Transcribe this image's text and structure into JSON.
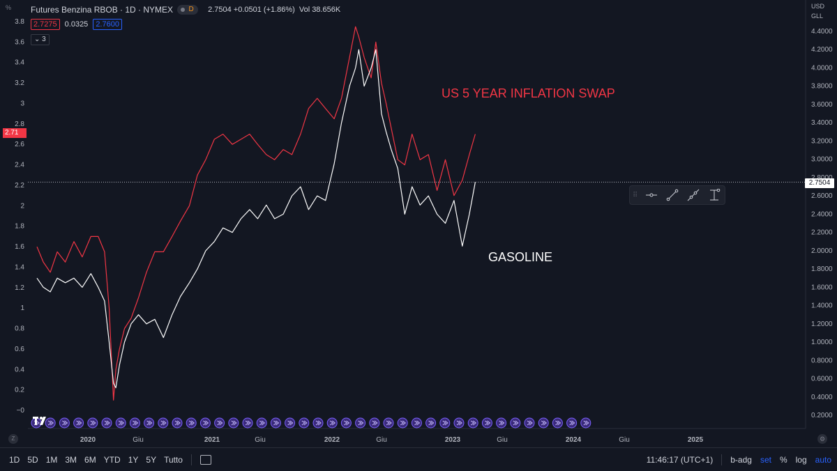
{
  "header": {
    "title": "Futures Benzina RBOB · 1D · NYMEX",
    "badge": "D",
    "quote": "2.7504 +0.0501 (+1.86%)",
    "volume": "Vol 38.656K"
  },
  "indicator": {
    "value1": "2.7275",
    "value2": "0.0325",
    "value3": "2.7600",
    "collapse_label": "3"
  },
  "left_axis_unit": "%",
  "right_axis_currency": "USD",
  "right_axis_unit": "GLL",
  "current_price_label": "2.7504",
  "left_current_label": "2.71",
  "annotations": {
    "inflation": "US 5 YEAR INFLATION SWAP",
    "gasoline": "GASOLINE"
  },
  "bottom_bar": {
    "ranges": [
      "1D",
      "5D",
      "1M",
      "3M",
      "6M",
      "YTD",
      "1Y",
      "5Y",
      "Tutto"
    ],
    "time": "11:46:17 (UTC+1)",
    "adjust": "b-adg",
    "set": "set",
    "pct": "%",
    "log": "log",
    "auto": "auto"
  },
  "z_label": "Z",
  "colors": {
    "background": "#131722",
    "inflation_line": "#f23645",
    "gasoline_line": "#ffffff",
    "text": "#b2b5be",
    "accent": "#2962ff"
  },
  "chart_data": {
    "type": "line",
    "x_axis": {
      "ticks": [
        "2020",
        "Giu",
        "2021",
        "Giu",
        "2022",
        "Giu",
        "2023",
        "Giu",
        "2024",
        "Giu",
        "2025"
      ]
    },
    "left_axis": {
      "ticks": [
        "−0",
        "0.2",
        "0.4",
        "0.6",
        "0.8",
        "1",
        "1.2",
        "1.4",
        "1.6",
        "1.8",
        "2",
        "2.2",
        "2.4",
        "2.6",
        "2.8",
        "3",
        "3.2",
        "3.4",
        "3.6",
        "3.8"
      ],
      "ylim": [
        0,
        3.8
      ]
    },
    "right_axis": {
      "ticks": [
        "0.2000",
        "0.4000",
        "0.6000",
        "0.8000",
        "1.0000",
        "1.2000",
        "1.4000",
        "1.6000",
        "1.8000",
        "2.0000",
        "2.2000",
        "2.4000",
        "2.6000",
        "2.8000",
        "3.0000",
        "3.2000",
        "3.4000",
        "3.6000",
        "3.8000",
        "4.0000",
        "4.2000",
        "4.4000"
      ],
      "ylim": [
        0.2,
        4.4
      ]
    },
    "series": [
      {
        "axis": "left",
        "x": [
          "2019-08-01",
          "2019-08-20",
          "2019-09-10",
          "2019-10-01",
          "2019-10-25",
          "2019-11-20",
          "2019-12-15",
          "2020-01-10",
          "2020-02-01",
          "2020-02-20",
          "2020-03-05",
          "2020-03-18",
          "2020-03-25",
          "2020-04-05",
          "2020-04-20",
          "2020-05-10",
          "2020-06-01",
          "2020-06-25",
          "2020-07-20",
          "2020-08-15",
          "2020-09-10",
          "2020-10-05",
          "2020-11-01",
          "2020-11-25",
          "2020-12-20",
          "2021-01-15",
          "2021-02-10",
          "2021-03-10",
          "2021-04-05",
          "2021-05-01",
          "2021-05-25",
          "2021-06-20",
          "2021-07-15",
          "2021-08-10",
          "2021-09-05",
          "2021-10-01",
          "2021-10-25",
          "2021-11-20",
          "2021-12-15",
          "2022-01-10",
          "2022-02-01",
          "2022-02-25",
          "2022-03-15",
          "2022-03-25",
          "2022-04-10",
          "2022-05-01",
          "2022-05-15",
          "2022-06-01",
          "2022-06-15",
          "2022-07-01",
          "2022-07-20",
          "2022-08-10",
          "2022-09-01",
          "2022-09-25",
          "2022-10-20",
          "2022-11-15",
          "2022-12-10",
          "2023-01-05",
          "2023-01-30",
          "2023-02-20",
          "2023-03-10"
        ],
        "values": [
          1.6,
          1.45,
          1.35,
          1.55,
          1.45,
          1.65,
          1.5,
          1.7,
          1.7,
          1.55,
          1.0,
          0.1,
          0.4,
          0.6,
          0.8,
          0.9,
          1.1,
          1.35,
          1.55,
          1.55,
          1.7,
          1.85,
          2.0,
          2.3,
          2.45,
          2.65,
          2.7,
          2.6,
          2.65,
          2.7,
          2.6,
          2.5,
          2.45,
          2.55,
          2.5,
          2.7,
          2.95,
          3.05,
          2.95,
          2.85,
          3.05,
          3.45,
          3.75,
          3.65,
          3.45,
          3.25,
          3.6,
          3.2,
          3.0,
          2.75,
          2.45,
          2.4,
          2.7,
          2.45,
          2.5,
          2.15,
          2.45,
          2.1,
          2.25,
          2.5,
          2.7
        ]
      },
      {
        "axis": "right",
        "x": [
          "2019-08-01",
          "2019-08-20",
          "2019-09-10",
          "2019-10-01",
          "2019-10-25",
          "2019-11-20",
          "2019-12-15",
          "2020-01-10",
          "2020-02-01",
          "2020-02-20",
          "2020-03-05",
          "2020-03-18",
          "2020-03-25",
          "2020-04-05",
          "2020-04-20",
          "2020-05-10",
          "2020-06-01",
          "2020-06-25",
          "2020-07-20",
          "2020-08-15",
          "2020-09-10",
          "2020-10-05",
          "2020-11-01",
          "2020-11-25",
          "2020-12-20",
          "2021-01-15",
          "2021-02-10",
          "2021-03-10",
          "2021-04-05",
          "2021-05-01",
          "2021-05-25",
          "2021-06-20",
          "2021-07-15",
          "2021-08-10",
          "2021-09-05",
          "2021-10-01",
          "2021-10-25",
          "2021-11-20",
          "2021-12-15",
          "2022-01-10",
          "2022-02-01",
          "2022-02-25",
          "2022-03-15",
          "2022-03-25",
          "2022-04-10",
          "2022-05-01",
          "2022-05-15",
          "2022-06-01",
          "2022-06-15",
          "2022-07-01",
          "2022-07-20",
          "2022-08-10",
          "2022-09-01",
          "2022-09-25",
          "2022-10-20",
          "2022-11-15",
          "2022-12-10",
          "2023-01-05",
          "2023-01-30",
          "2023-02-20",
          "2023-03-10"
        ],
        "values": [
          1.7,
          1.6,
          1.55,
          1.7,
          1.65,
          1.7,
          1.6,
          1.75,
          1.6,
          1.45,
          1.0,
          0.55,
          0.5,
          0.75,
          1.0,
          1.2,
          1.3,
          1.2,
          1.25,
          1.05,
          1.3,
          1.5,
          1.65,
          1.8,
          2.0,
          2.1,
          2.25,
          2.2,
          2.35,
          2.45,
          2.35,
          2.5,
          2.35,
          2.4,
          2.6,
          2.7,
          2.45,
          2.6,
          2.55,
          2.95,
          3.4,
          3.8,
          4.0,
          4.2,
          3.8,
          4.0,
          4.2,
          3.5,
          3.3,
          3.1,
          2.9,
          2.4,
          2.7,
          2.5,
          2.6,
          2.4,
          2.3,
          2.55,
          2.05,
          2.4,
          2.7504
        ]
      }
    ]
  }
}
